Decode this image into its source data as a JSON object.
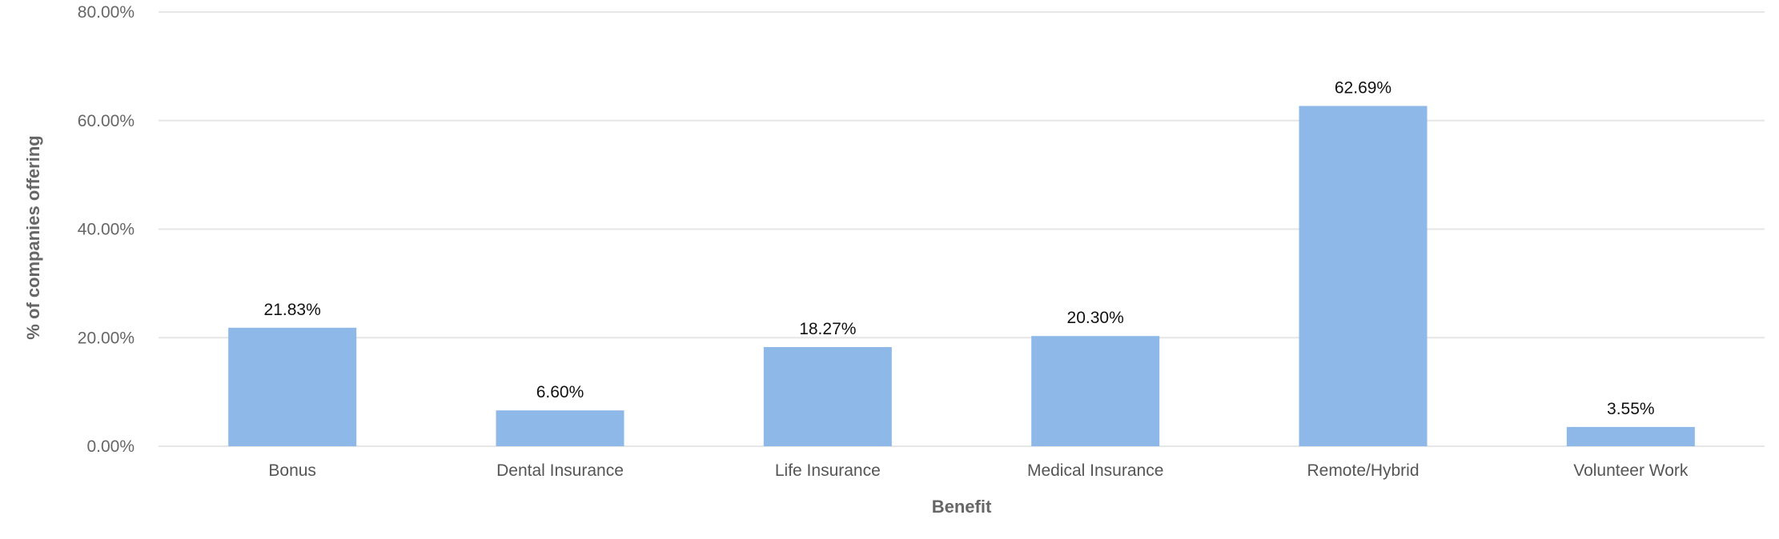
{
  "chart_data": {
    "type": "bar",
    "categories": [
      "Bonus",
      "Dental Insurance",
      "Life Insurance",
      "Medical Insurance",
      "Remote/Hybrid",
      "Volunteer Work"
    ],
    "values": [
      21.83,
      6.6,
      18.27,
      20.3,
      62.69,
      3.55
    ],
    "data_labels": [
      "21.83%",
      "6.60%",
      "18.27%",
      "20.30%",
      "62.69%",
      "3.55%"
    ],
    "xlabel": "Benefit",
    "ylabel": "% of companies offering",
    "ylim": [
      0,
      80
    ],
    "yticks": [
      0,
      20,
      40,
      60,
      80
    ],
    "ytick_labels": [
      "0.00%",
      "20.00%",
      "40.00%",
      "60.00%",
      "80.00%"
    ],
    "grid": true,
    "colors": {
      "bar": "#8db8e8",
      "grid": "#e6e6e6"
    }
  }
}
